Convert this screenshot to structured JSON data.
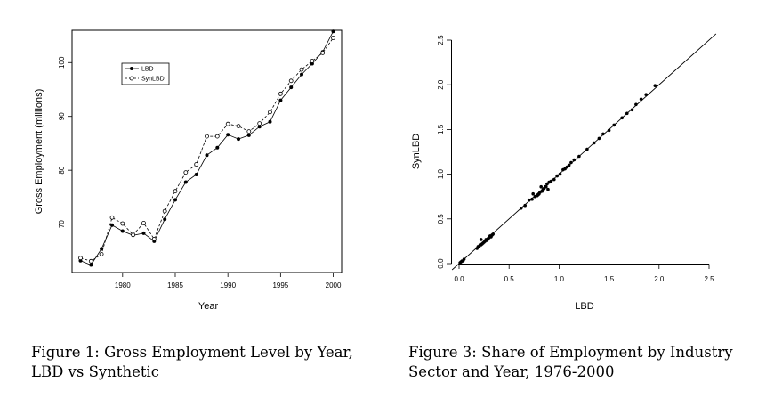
{
  "chart_data": [
    {
      "type": "line",
      "title": "",
      "xlabel": "Year",
      "ylabel": "Gross Employment (millions)",
      "xlim": [
        1975.2,
        2000.8
      ],
      "ylim": [
        61,
        106
      ],
      "xticks": [
        1980,
        1985,
        1990,
        1995,
        2000
      ],
      "yticks": [
        70,
        80,
        90,
        100
      ],
      "grid": false,
      "legend": "upper-left",
      "x": [
        1976,
        1977,
        1978,
        1979,
        1980,
        1981,
        1982,
        1983,
        1984,
        1985,
        1986,
        1987,
        1988,
        1989,
        1990,
        1991,
        1992,
        1993,
        1994,
        1995,
        1996,
        1997,
        1998,
        1999,
        2000
      ],
      "series": [
        {
          "name": "LBD",
          "marker": "filled",
          "line": "solid",
          "values": [
            63.2,
            62.4,
            65.4,
            69.8,
            68.7,
            67.9,
            68.3,
            66.8,
            70.9,
            74.5,
            77.8,
            79.2,
            82.8,
            84.2,
            86.6,
            85.8,
            86.5,
            88.1,
            89.0,
            93.0,
            95.4,
            97.8,
            99.8,
            102.0,
            105.8
          ]
        },
        {
          "name": "SynLBD",
          "marker": "open",
          "line": "dashed",
          "values": [
            63.7,
            63.1,
            64.4,
            71.2,
            70.1,
            68.0,
            70.2,
            67.2,
            72.4,
            76.1,
            79.6,
            81.1,
            86.3,
            86.3,
            88.6,
            88.2,
            87.2,
            88.7,
            90.8,
            94.2,
            96.6,
            98.7,
            100.3,
            101.8,
            104.6
          ]
        }
      ]
    },
    {
      "type": "scatter",
      "title": "",
      "xlabel": "LBD",
      "ylabel": "SynLBD",
      "xlim": [
        -0.1,
        2.5
      ],
      "ylim": [
        -0.06,
        2.55
      ],
      "xticks": [
        "0.0",
        "0.5",
        "1.0",
        "1.5",
        "2.0",
        "2.5"
      ],
      "yticks": [
        "0.0",
        "0.5",
        "1.0",
        "1.5",
        "2.0",
        "2.5"
      ],
      "grid": false,
      "reference_line": "y = x",
      "points": [
        [
          0.01,
          0.01
        ],
        [
          0.02,
          0.02
        ],
        [
          0.03,
          0.03
        ],
        [
          0.04,
          0.03
        ],
        [
          0.05,
          0.05
        ],
        [
          0.18,
          0.17
        ],
        [
          0.19,
          0.19
        ],
        [
          0.2,
          0.19
        ],
        [
          0.21,
          0.21
        ],
        [
          0.22,
          0.21
        ],
        [
          0.22,
          0.27
        ],
        [
          0.23,
          0.22
        ],
        [
          0.24,
          0.23
        ],
        [
          0.25,
          0.24
        ],
        [
          0.26,
          0.25
        ],
        [
          0.27,
          0.27
        ],
        [
          0.28,
          0.26
        ],
        [
          0.29,
          0.28
        ],
        [
          0.3,
          0.29
        ],
        [
          0.31,
          0.31
        ],
        [
          0.32,
          0.3
        ],
        [
          0.33,
          0.32
        ],
        [
          0.34,
          0.33
        ],
        [
          0.62,
          0.62
        ],
        [
          0.66,
          0.65
        ],
        [
          0.7,
          0.71
        ],
        [
          0.73,
          0.72
        ],
        [
          0.74,
          0.78
        ],
        [
          0.76,
          0.75
        ],
        [
          0.78,
          0.76
        ],
        [
          0.79,
          0.77
        ],
        [
          0.8,
          0.78
        ],
        [
          0.81,
          0.8
        ],
        [
          0.82,
          0.86
        ],
        [
          0.83,
          0.81
        ],
        [
          0.84,
          0.83
        ],
        [
          0.85,
          0.84
        ],
        [
          0.86,
          0.86
        ],
        [
          0.87,
          0.86
        ],
        [
          0.88,
          0.89
        ],
        [
          0.89,
          0.83
        ],
        [
          0.9,
          0.91
        ],
        [
          0.92,
          0.92
        ],
        [
          0.95,
          0.94
        ],
        [
          0.98,
          0.98
        ],
        [
          1.01,
          1.0
        ],
        [
          1.04,
          1.05
        ],
        [
          1.06,
          1.06
        ],
        [
          1.08,
          1.08
        ],
        [
          1.1,
          1.1
        ],
        [
          1.12,
          1.13
        ],
        [
          1.15,
          1.16
        ],
        [
          1.2,
          1.2
        ],
        [
          1.28,
          1.28
        ],
        [
          1.35,
          1.35
        ],
        [
          1.4,
          1.4
        ],
        [
          1.44,
          1.45
        ],
        [
          1.5,
          1.49
        ],
        [
          1.55,
          1.55
        ],
        [
          1.63,
          1.63
        ],
        [
          1.68,
          1.68
        ],
        [
          1.73,
          1.72
        ],
        [
          1.77,
          1.78
        ],
        [
          1.82,
          1.84
        ],
        [
          1.87,
          1.89
        ],
        [
          1.96,
          1.99
        ]
      ]
    }
  ],
  "captions": {
    "figure1": "Figure 1: Gross Employment Level by Year, LBD vs Synthetic",
    "figure3": "Figure 3: Share of Employment by Industry Sector and Year, 1976-2000"
  }
}
